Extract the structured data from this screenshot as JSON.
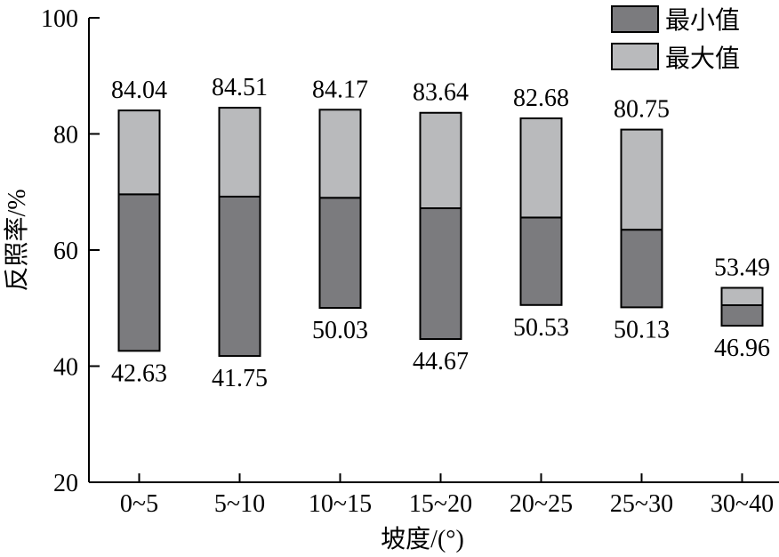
{
  "chart_data": {
    "type": "bar",
    "subtype": "floating-range-stacked",
    "title": "",
    "xlabel": "坡度/(°)",
    "ylabel": "反照率/%",
    "ylim": [
      20,
      100
    ],
    "yticks": [
      20,
      40,
      60,
      80,
      100
    ],
    "grid": false,
    "legend_position": "top-right",
    "categories": [
      "0~5",
      "5~10",
      "10~15",
      "15~20",
      "20~25",
      "25~30",
      "30~40"
    ],
    "series": [
      {
        "name": "最小值",
        "color": "#7b7b7e",
        "values": [
          42.63,
          41.75,
          50.03,
          44.67,
          50.53,
          50.13,
          46.96
        ]
      },
      {
        "name": "最大值",
        "color": "#b9babc",
        "values": [
          84.04,
          84.51,
          84.17,
          83.64,
          82.68,
          80.75,
          53.49
        ]
      }
    ],
    "mean_boundary": [
      69.6,
      69.2,
      69.0,
      67.2,
      65.6,
      63.5,
      50.5
    ],
    "max_labels": [
      "84.04",
      "84.51",
      "84.17",
      "83.64",
      "82.68",
      "80.75",
      "53.49"
    ],
    "min_labels": [
      "42.63",
      "41.75",
      "50.03",
      "44.67",
      "50.53",
      "50.13",
      "46.96"
    ]
  }
}
